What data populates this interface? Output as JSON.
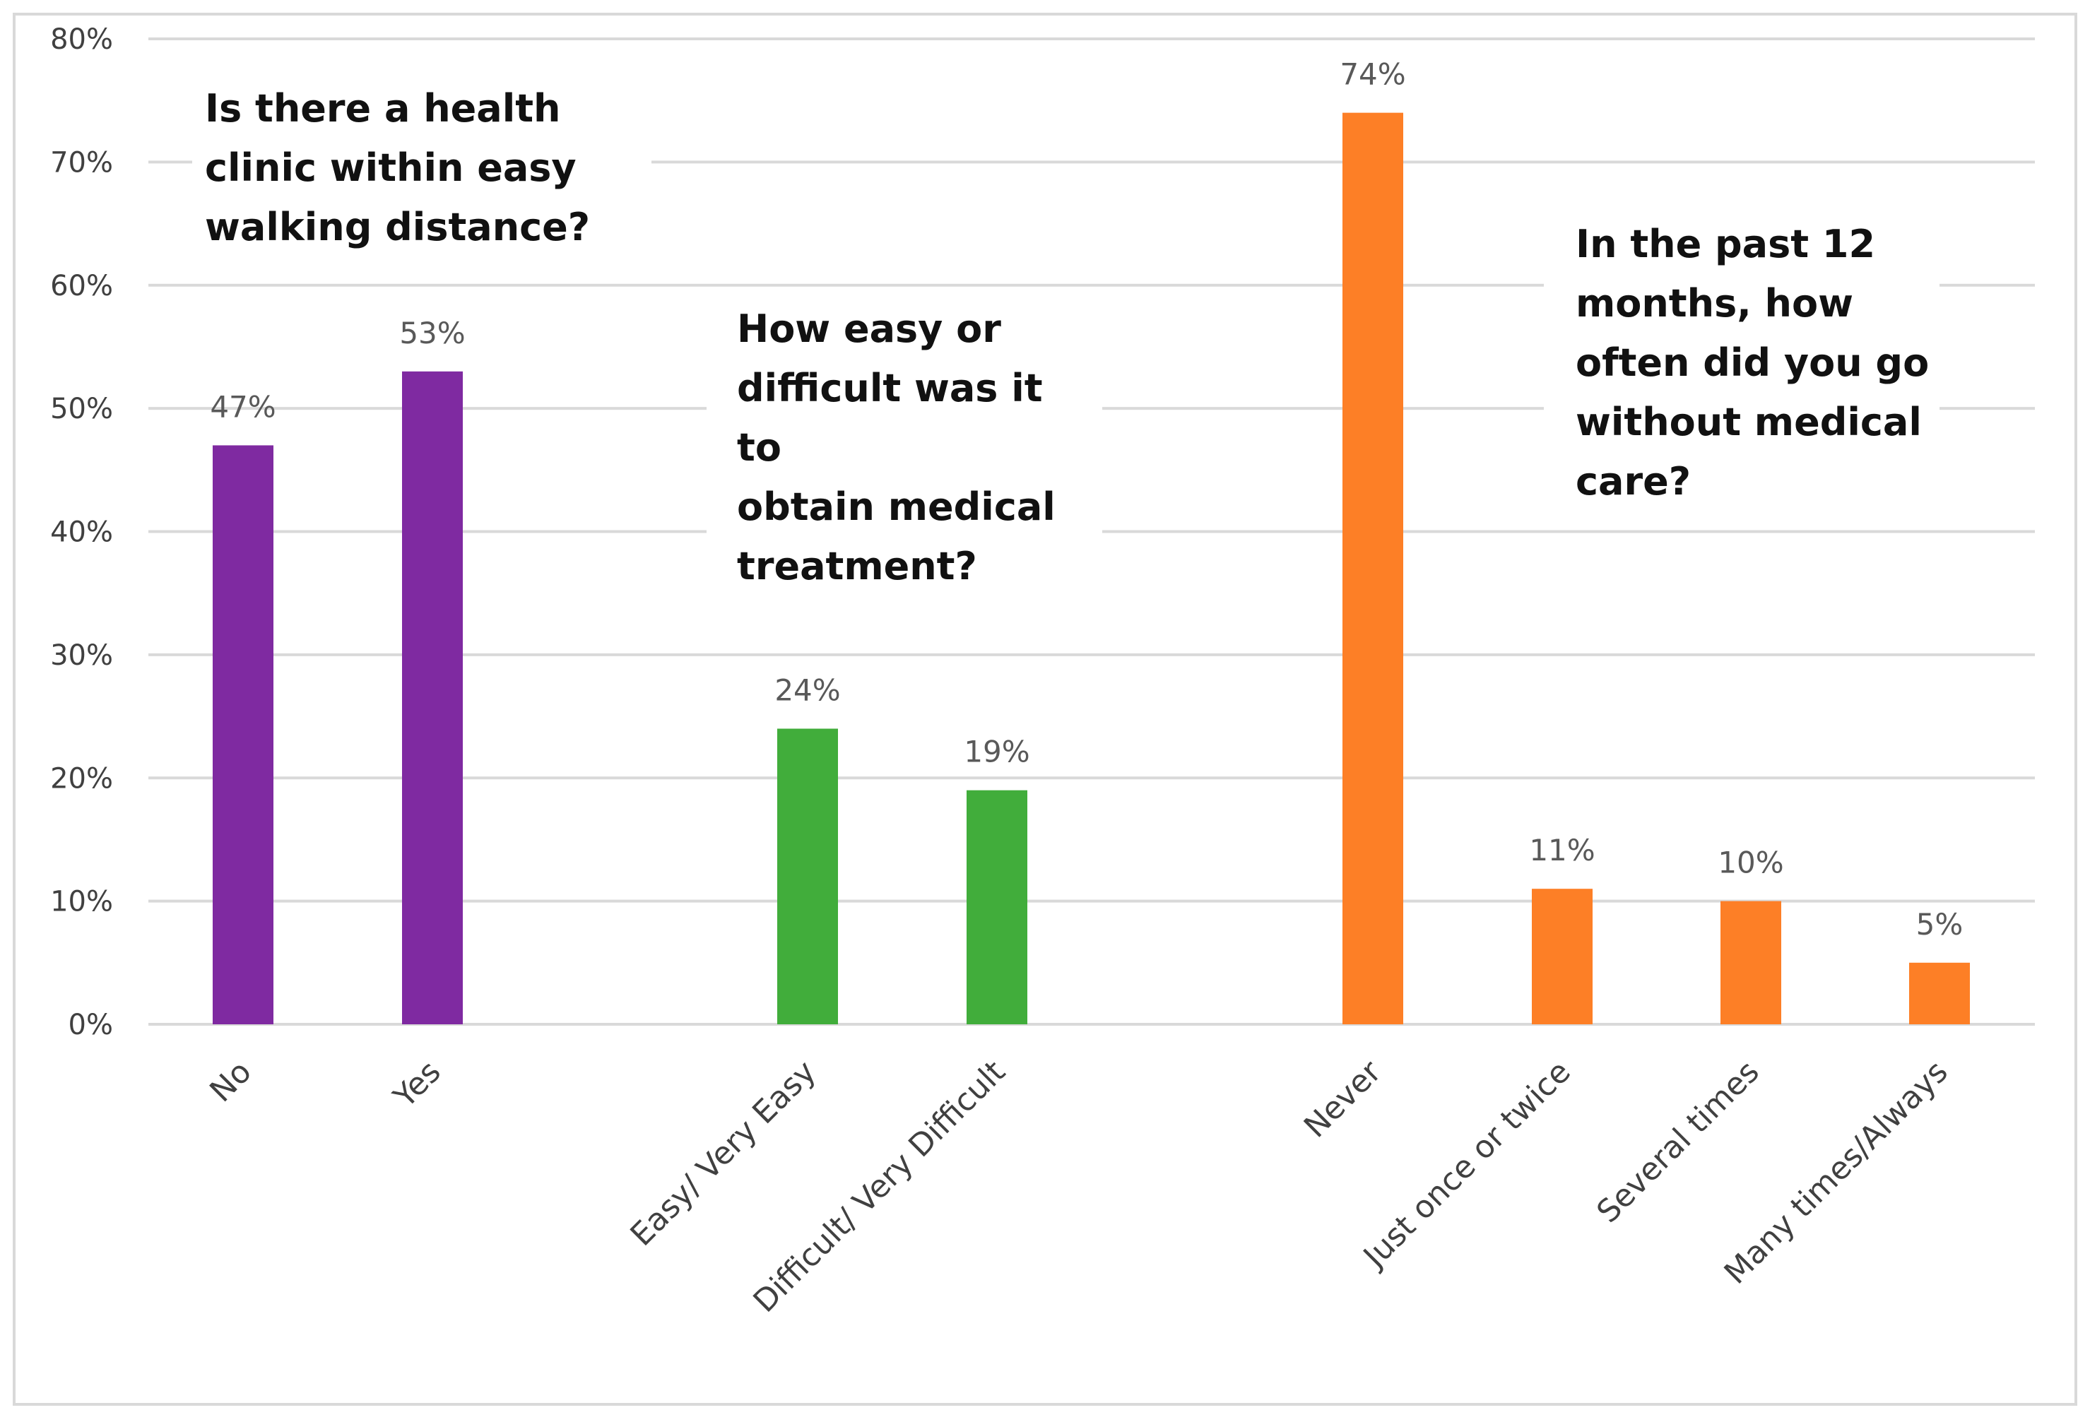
{
  "chart_data": {
    "type": "bar",
    "y_axis": {
      "ylim": [
        0,
        80
      ],
      "ticks": [
        "0%",
        "10%",
        "20%",
        "30%",
        "40%",
        "50%",
        "60%",
        "70%",
        "80%"
      ],
      "gridlines": true
    },
    "groups": [
      {
        "name": "Is there a health clinic within easy walking distance?",
        "annotation_lines": [
          "Is there a health",
          "clinic within easy",
          "walking distance?"
        ],
        "color": "#7f2aa1",
        "categories": [
          "No",
          "Yes"
        ],
        "values": [
          47,
          53
        ],
        "data_labels": [
          "47%",
          "53%"
        ]
      },
      {
        "name": "How easy or difficult was it to obtain medical treatment?",
        "annotation_lines": [
          "How easy or",
          "difficult was it",
          "to",
          "obtain medical",
          "treatment?"
        ],
        "color": "#41ad3b",
        "categories": [
          "Easy/ Very Easy",
          "Difficult/ Very Difficult"
        ],
        "values": [
          24,
          19
        ],
        "data_labels": [
          "24%",
          "19%"
        ]
      },
      {
        "name": "In the past 12 months, how often did you go without medical care?",
        "annotation_lines": [
          "In the past 12",
          "months, how",
          "often did you go",
          "without medical",
          "care?"
        ],
        "color": "#fd7f26",
        "categories": [
          "Never",
          "Just once or twice",
          "Several times",
          "Many times/Always"
        ],
        "values": [
          74,
          11,
          10,
          5
        ],
        "data_labels": [
          "74%",
          "11%",
          "10%",
          "5%"
        ]
      }
    ]
  }
}
